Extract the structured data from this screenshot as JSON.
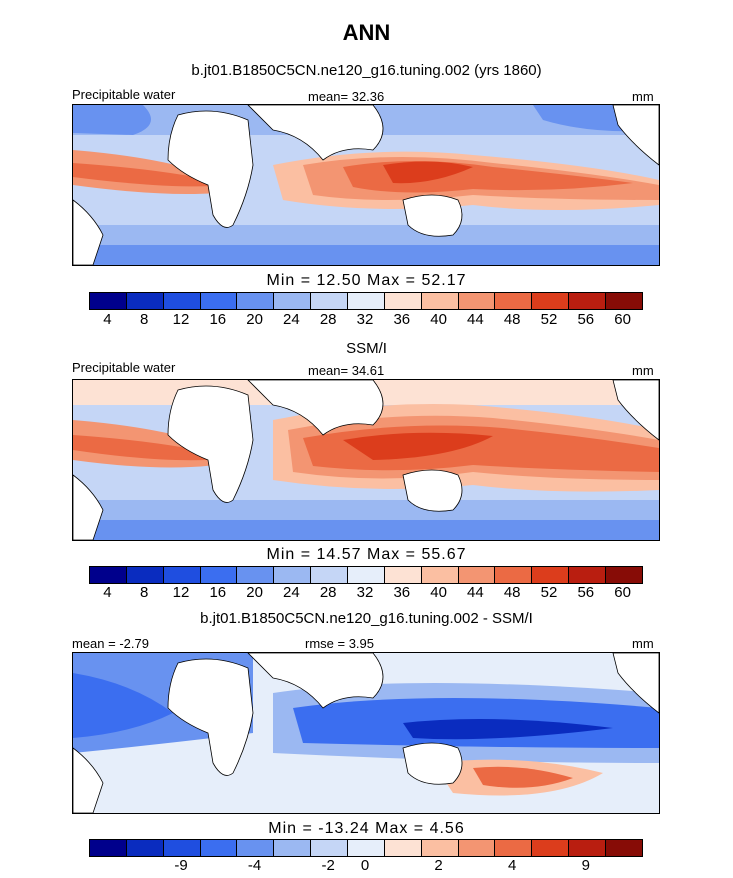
{
  "title": "ANN",
  "panels": [
    {
      "subtitle": "b.jt01.B1850C5CN.ne120_g16.tuning.002 (yrs 1860)",
      "left_label": "Precipitable water",
      "center_label": "mean=  32.36",
      "right_label": "mm",
      "minmax": "Min =   12.50  Max =   52.17",
      "ticks": [
        "4",
        "8",
        "12",
        "16",
        "20",
        "24",
        "28",
        "32",
        "36",
        "40",
        "44",
        "48",
        "52",
        "56",
        "60"
      ]
    },
    {
      "subtitle": "SSM/I",
      "left_label": "Precipitable water",
      "center_label": "mean=  34.61",
      "right_label": "mm",
      "minmax": "Min =   14.57  Max =   55.67",
      "ticks": [
        "4",
        "8",
        "12",
        "16",
        "20",
        "24",
        "28",
        "32",
        "36",
        "40",
        "44",
        "48",
        "52",
        "56",
        "60"
      ]
    },
    {
      "subtitle": "b.jt01.B1850C5CN.ne120_g16.tuning.002 - SSM/I",
      "left_label": "mean =  -2.79",
      "center_label": "rmse =   3.95",
      "right_label": "mm",
      "minmax": "Min = -13.24  Max =    4.56",
      "ticks": [
        "-9",
        "-4",
        "-2",
        "0",
        "2",
        "4",
        "9"
      ]
    }
  ],
  "colorbar_colors": [
    "#00008c",
    "#0a2cbf",
    "#1f4ee0",
    "#3b6ef0",
    "#6892f0",
    "#9bb8f2",
    "#c5d6f6",
    "#e6eefa",
    "#fde2d4",
    "#fbbfa2",
    "#f39572",
    "#eb6a44",
    "#dc3d1c",
    "#b91e10",
    "#870c06"
  ],
  "map_colors": {
    "land": "#ffffff",
    "ocean_low": "#3b6ef0",
    "ocean_mid": "#9bb8f2",
    "ocean_pale": "#e6eefa",
    "warm_light": "#fbbfa2",
    "warm": "#f39572",
    "warm_strong": "#eb6a44",
    "hot": "#dc3d1c",
    "deep_blue": "#0a2cbf"
  }
}
